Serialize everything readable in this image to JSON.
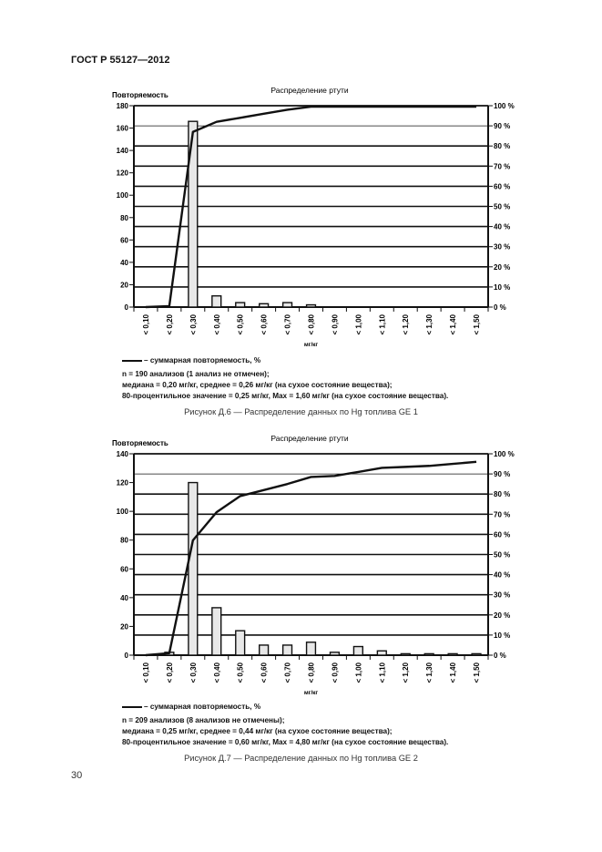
{
  "document": {
    "header": "ГОСТ Р 55127—2012",
    "page_number": "30"
  },
  "figures": [
    {
      "caption": "Рисунок Д.6 — Распределение данных по Hg топлива GE 1",
      "legend": "– суммарная повторяемость, %",
      "notes": [
        "n = 190 анализов (1 анализ не отмечен);",
        "медиана = 0,20 мг/кг, среднее = 0,26 мг/кг (на сухое состояние вещества);",
        "80-процентильное значение = 0,25 мг/кг, Max = 1,60 мг/кг (на сухое состояние вещества)."
      ]
    },
    {
      "caption": "Рисунок Д.7 — Распределение данных по Hg топлива GE 2",
      "legend": "– суммарная повторяемость, %",
      "notes": [
        "n = 209 анализов (8 анализов не отмечены);",
        "медиана = 0,25 мг/кг, среднее = 0,44 мг/кг (на сухое состояние вещества);",
        "80-процентильное значение = 0,60 мг/кг, Max = 4,80 мг/кг (на сухое состояние вещества)."
      ]
    }
  ],
  "chart_data": [
    {
      "type": "bar",
      "title": "Распределение ртути",
      "xlabel": "мг/кг",
      "ylabel": "Повторяемость",
      "y2label": "%",
      "categories": [
        "< 0,10",
        "< 0,20",
        "< 0,30",
        "< 0,40",
        "< 0,50",
        "< 0,60",
        "< 0,70",
        "< 0,80",
        "< 0,90",
        "< 1,00",
        "< 1,10",
        "< 1,20",
        "< 1,30",
        "< 1,40",
        "< 1,50"
      ],
      "ylim": [
        0,
        180
      ],
      "yticks": [
        0,
        20,
        40,
        60,
        80,
        100,
        120,
        140,
        160,
        180
      ],
      "y2lim": [
        0,
        100
      ],
      "y2ticks": [
        "0 %",
        "10 %",
        "20 %",
        "30 %",
        "40 %",
        "50 %",
        "60 %",
        "70 %",
        "80 %",
        "90 %",
        "100 %"
      ],
      "grid": true,
      "series": [
        {
          "name": "Повторяемость",
          "type": "bar",
          "axis": "left",
          "values": [
            0,
            0,
            166,
            10,
            4,
            3,
            4,
            2,
            0,
            0,
            0,
            0,
            0,
            0,
            0
          ]
        },
        {
          "name": "суммарная повторяемость, %",
          "type": "line",
          "axis": "right",
          "values": [
            0,
            0.5,
            87,
            92,
            94,
            96,
            98,
            99.5,
            99.5,
            99.5,
            99.5,
            99.5,
            99.5,
            99.5,
            99.5
          ]
        }
      ]
    },
    {
      "type": "bar",
      "title": "Распределение ртути",
      "xlabel": "мг/кг",
      "ylabel": "Повторяемость",
      "y2label": "%",
      "categories": [
        "< 0,10",
        "< 0,20",
        "< 0,30",
        "< 0,40",
        "< 0,50",
        "< 0,60",
        "< 0,70",
        "< 0,80",
        "< 0,90",
        "< 1,00",
        "< 1,10",
        "< 1,20",
        "< 1,30",
        "< 1,40",
        "< 1,50"
      ],
      "ylim": [
        0,
        140
      ],
      "yticks": [
        0,
        20,
        40,
        60,
        80,
        100,
        120,
        140
      ],
      "y2lim": [
        0,
        100
      ],
      "y2ticks": [
        "0 %",
        "10 %",
        "20 %",
        "30 %",
        "40 %",
        "50 %",
        "60 %",
        "70 %",
        "80 %",
        "90 %",
        "100 %"
      ],
      "grid": true,
      "series": [
        {
          "name": "Повторяемость",
          "type": "bar",
          "axis": "left",
          "values": [
            0,
            2,
            120,
            33,
            17,
            7,
            7,
            9,
            2,
            6,
            3,
            1,
            1,
            1,
            1
          ]
        },
        {
          "name": "суммарная повторяемость, %",
          "type": "line",
          "axis": "right",
          "values": [
            0,
            1,
            57,
            71,
            79,
            82,
            85,
            88.5,
            89,
            91,
            93,
            93.5,
            94,
            95,
            96
          ]
        }
      ]
    }
  ]
}
